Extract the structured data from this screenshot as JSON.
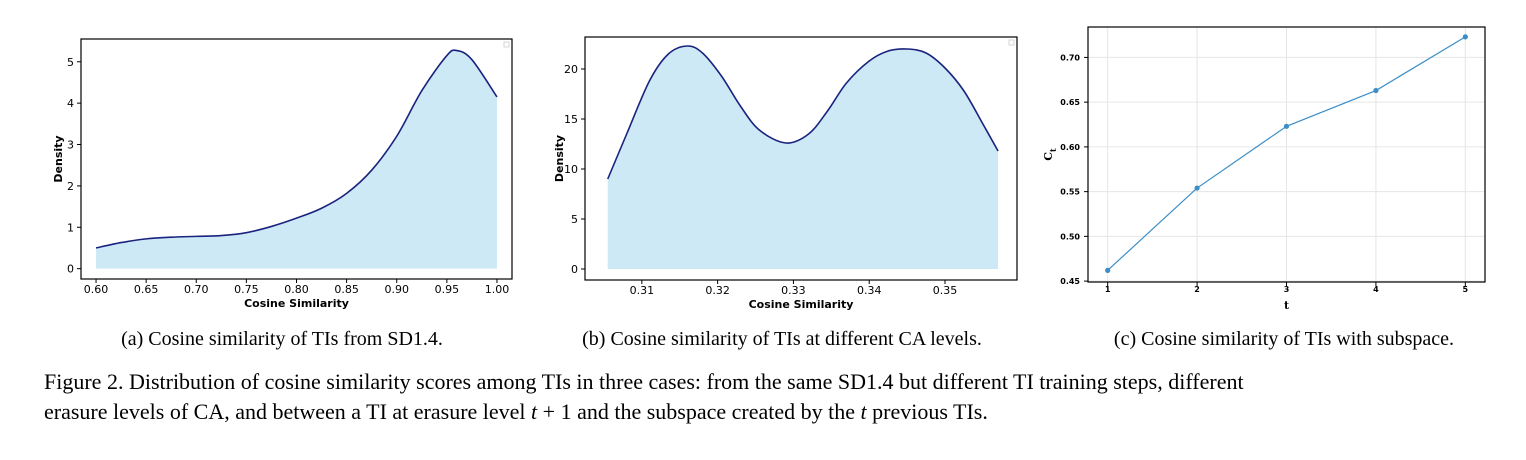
{
  "chart_data": [
    {
      "type": "area",
      "subcaption": "(a) Cosine similarity of TIs from SD1.4.",
      "xlabel": "Cosine Similarity",
      "ylabel": "Density",
      "xlim": [
        0.585,
        1.015
      ],
      "ylim": [
        -0.25,
        5.55
      ],
      "xticks": [
        "0.60",
        "0.65",
        "0.70",
        "0.75",
        "0.80",
        "0.85",
        "0.90",
        "0.95",
        "1.00"
      ],
      "yticks": [
        "0",
        "1",
        "2",
        "3",
        "4",
        "5"
      ],
      "grid": false,
      "fill_color": "#cde9f6",
      "line_color": "#1a237e",
      "x": [
        0.6,
        0.625,
        0.65,
        0.675,
        0.7,
        0.725,
        0.75,
        0.775,
        0.8,
        0.825,
        0.85,
        0.875,
        0.9,
        0.925,
        0.95,
        0.96,
        0.975,
        1.0
      ],
      "y": [
        0.5,
        0.63,
        0.72,
        0.76,
        0.78,
        0.8,
        0.87,
        1.02,
        1.22,
        1.46,
        1.82,
        2.38,
        3.2,
        4.3,
        5.15,
        5.27,
        5.05,
        4.15
      ]
    },
    {
      "type": "area",
      "subcaption": "(b) Cosine similarity of TIs at different CA levels.",
      "xlabel": "Cosine Similarity",
      "ylabel": "Density",
      "xlim": [
        0.3025,
        0.3595
      ],
      "ylim": [
        -1.1,
        23.2
      ],
      "xticks": [
        "0.31",
        "0.32",
        "0.33",
        "0.34",
        "0.35"
      ],
      "yticks": [
        "0",
        "5",
        "10",
        "15",
        "20"
      ],
      "grid": false,
      "fill_color": "#cde9f6",
      "line_color": "#1a237e",
      "x": [
        0.3055,
        0.308,
        0.311,
        0.3135,
        0.316,
        0.318,
        0.3205,
        0.323,
        0.3255,
        0.329,
        0.332,
        0.3345,
        0.337,
        0.34,
        0.3425,
        0.345,
        0.3475,
        0.35,
        0.3525,
        0.355,
        0.357
      ],
      "y": [
        9.0,
        13.5,
        18.8,
        21.5,
        22.3,
        21.6,
        19.3,
        16.3,
        13.9,
        12.6,
        13.5,
        15.8,
        18.6,
        20.8,
        21.8,
        22.0,
        21.6,
        20.1,
        17.8,
        14.5,
        11.8
      ]
    },
    {
      "type": "line",
      "subcaption": "(c) Cosine similarity of TIs with subspace.",
      "xlabel": "t",
      "ylabel": "C_t",
      "xlim": [
        0.78,
        5.22
      ],
      "ylim": [
        0.449,
        0.734
      ],
      "xticks": [
        "1",
        "2",
        "3",
        "4",
        "5"
      ],
      "yticks": [
        "0.45",
        "0.50",
        "0.55",
        "0.60",
        "0.65",
        "0.70"
      ],
      "grid": true,
      "line_color": "#3c8ec8",
      "x": [
        1,
        2,
        3,
        4,
        5
      ],
      "y": [
        0.462,
        0.554,
        0.623,
        0.663,
        0.723
      ]
    }
  ],
  "caption": {
    "line1": "Figure 2.  Distribution of cosine similarity scores among TIs in three cases: from the same SD1.4 but different TI training steps, different",
    "line2_pre": "erasure levels of CA, and between a TI at erasure level ",
    "line2_math1": "t",
    "line2_plus": " + 1",
    "line2_mid": " and the subspace created by the ",
    "line2_math2": "t",
    "line2_post": " previous TIs."
  }
}
